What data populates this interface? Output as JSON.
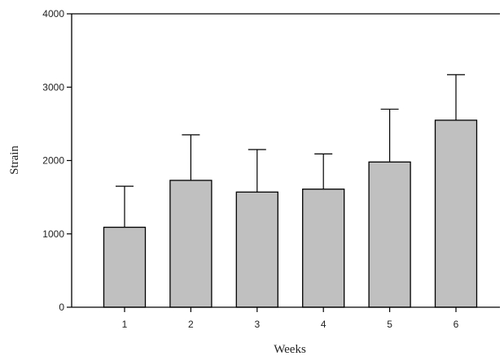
{
  "chart_data": {
    "type": "bar",
    "title": "",
    "xlabel": "Weeks",
    "ylabel": "Strain",
    "categories": [
      "1",
      "2",
      "3",
      "4",
      "5",
      "6"
    ],
    "values": [
      1090,
      1730,
      1570,
      1610,
      1980,
      2550
    ],
    "error_plus": [
      560,
      620,
      580,
      480,
      720,
      620
    ],
    "ylim": [
      0,
      4000
    ],
    "yticks": [
      0,
      1000,
      2000,
      3000,
      4000
    ],
    "ytick_labels": [
      "0",
      "1000",
      "2000",
      "3000",
      "4000"
    ],
    "grid": false,
    "bar_color": "#c0c0c0",
    "edge_color": "#000000"
  }
}
